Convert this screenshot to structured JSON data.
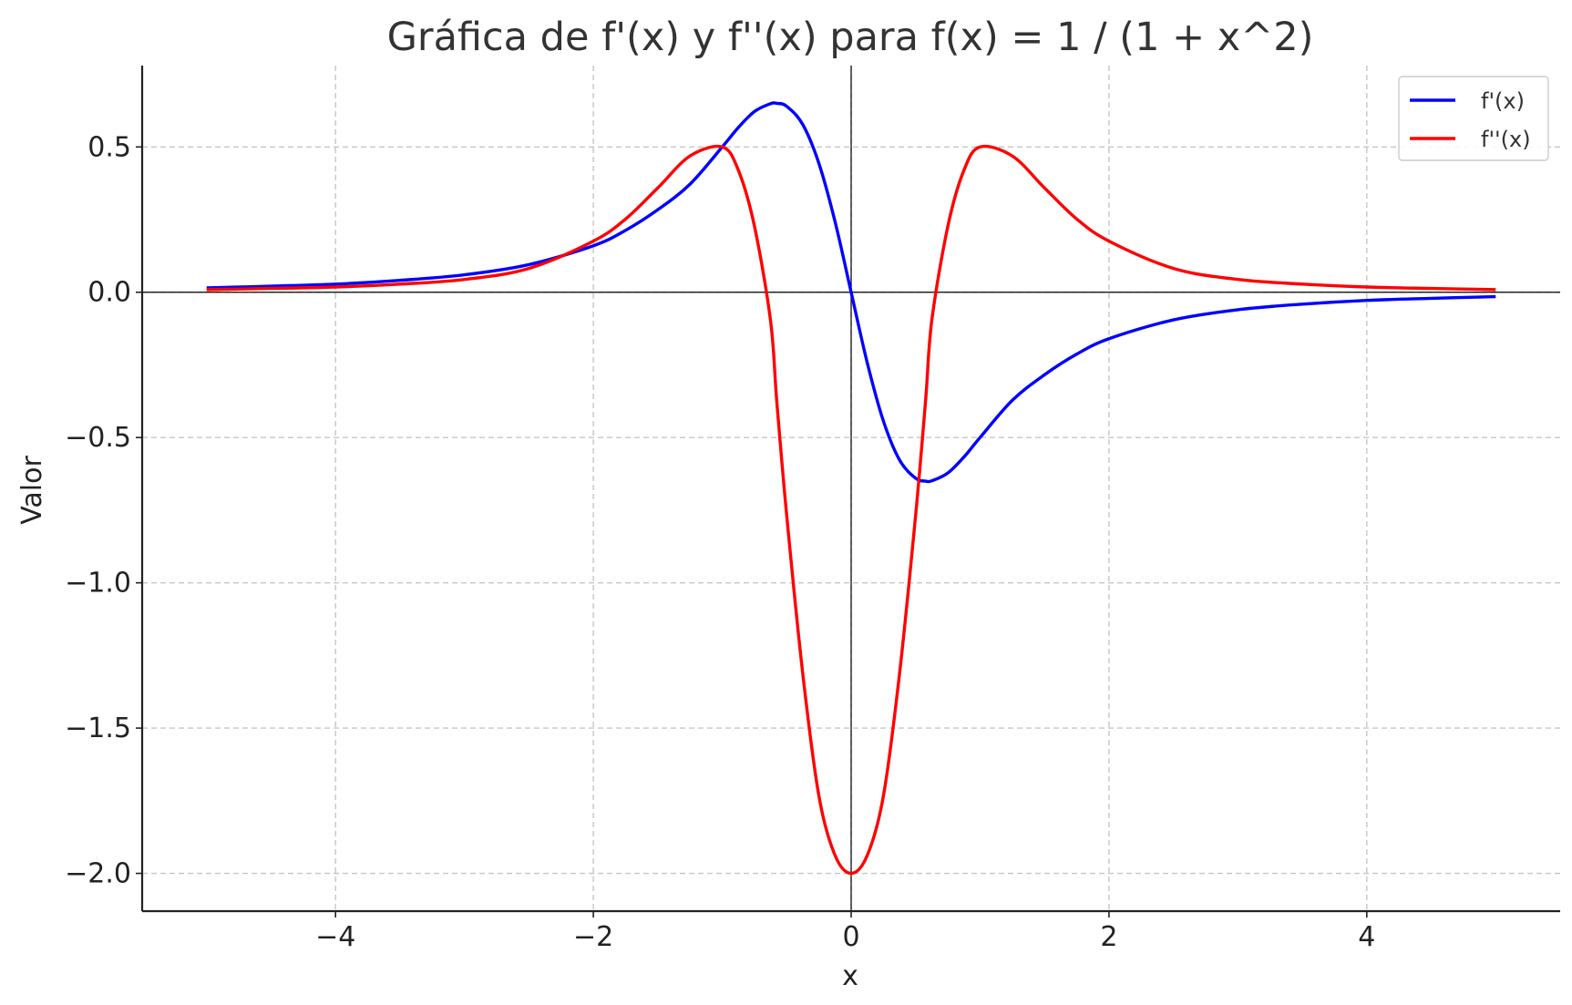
{
  "chart_data": {
    "type": "line",
    "title": "Gráfica de f'(x) y f''(x) para f(x) = 1 / (1 + x^2)",
    "xlabel": "x",
    "ylabel": "Valor",
    "xlim": [
      -5.5,
      5.5
    ],
    "ylim": [
      -2.13,
      0.78
    ],
    "xticks": [
      -4,
      -2,
      0,
      2,
      4
    ],
    "xtick_labels": [
      "−4",
      "−2",
      "0",
      "2",
      "4"
    ],
    "yticks": [
      0.5,
      0.0,
      -0.5,
      -1.0,
      -1.5,
      -2.0
    ],
    "ytick_labels": [
      "0.5",
      "0.0",
      "−0.5",
      "−1.0",
      "−1.5",
      "−2.0"
    ],
    "grid": true,
    "legend_position": "top-right",
    "x": [
      -5,
      -4.5,
      -4,
      -3.5,
      -3,
      -2.5,
      -2,
      -1.75,
      -1.5,
      -1.25,
      -1,
      -0.875,
      -0.75,
      -0.625,
      -0.577,
      -0.5,
      -0.375,
      -0.25,
      -0.125,
      0,
      0.125,
      0.25,
      0.375,
      0.5,
      0.577,
      0.625,
      0.75,
      0.875,
      1,
      1.25,
      1.5,
      1.75,
      2,
      2.5,
      3,
      3.5,
      4,
      4.5,
      5
    ],
    "series": [
      {
        "name": "f'(x)",
        "color": "#0000ff",
        "values": [
          0.015,
          0.021,
          0.028,
          0.041,
          0.06,
          0.095,
          0.16,
          0.213,
          0.284,
          0.372,
          0.5,
          0.567,
          0.622,
          0.649,
          0.65,
          0.64,
          0.577,
          0.443,
          0.243,
          0,
          -0.243,
          -0.443,
          -0.577,
          -0.64,
          -0.65,
          -0.649,
          -0.622,
          -0.567,
          -0.5,
          -0.372,
          -0.284,
          -0.213,
          -0.16,
          -0.095,
          -0.06,
          -0.041,
          -0.028,
          -0.021,
          -0.015
        ]
      },
      {
        "name": "f''(x)",
        "color": "#ff0000",
        "values": [
          0.009,
          0.013,
          0.018,
          0.028,
          0.044,
          0.082,
          0.176,
          0.252,
          0.359,
          0.469,
          0.5,
          0.42,
          0.227,
          -0.099,
          -0.375,
          -0.768,
          -1.314,
          -1.734,
          -1.938,
          -2,
          -1.938,
          -1.734,
          -1.314,
          -0.768,
          -0.375,
          -0.099,
          0.227,
          0.42,
          0.5,
          0.469,
          0.359,
          0.252,
          0.176,
          0.082,
          0.044,
          0.028,
          0.018,
          0.013,
          0.009
        ]
      }
    ]
  }
}
